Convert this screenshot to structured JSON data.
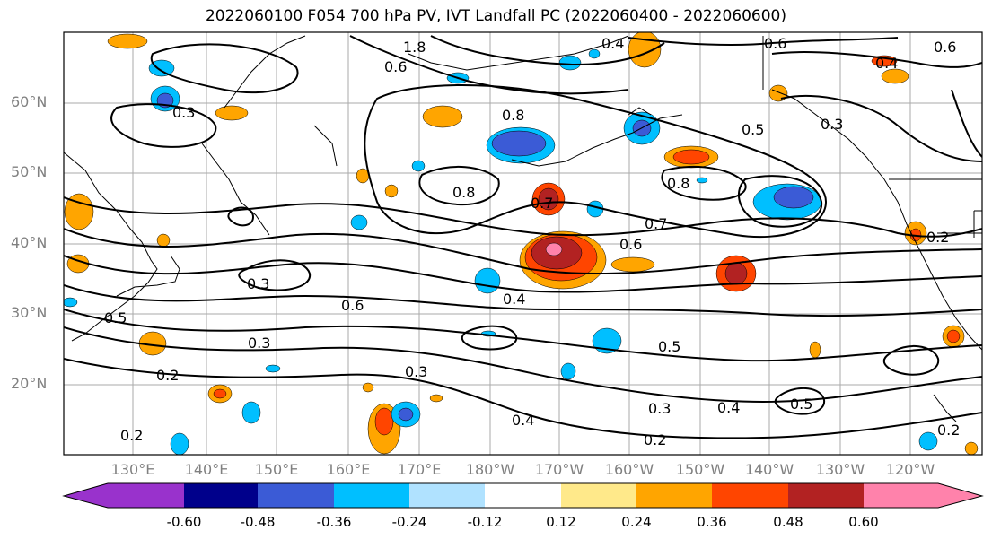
{
  "title": "2022060100 F054 700 hPa PV, IVT Landfall PC (2022060400 - 2022060600)",
  "lat_labels": [
    "60°N",
    "50°N",
    "40°N",
    "30°N",
    "20°N"
  ],
  "lon_labels": [
    "130°E",
    "140°E",
    "150°E",
    "160°E",
    "170°E",
    "180°W",
    "170°W",
    "160°W",
    "150°W",
    "140°W",
    "130°W",
    "120°W"
  ],
  "contour_labels": [
    "0.8",
    "0.8",
    "0.7",
    "0.7",
    "0.6",
    "0.6",
    "0.5",
    "0.5",
    "0.4",
    "0.4",
    "0.3",
    "0.3",
    "0.3",
    "0.3",
    "0.3",
    "0.2",
    "0.2",
    "0.2",
    "0.2",
    "0.2",
    "1.8",
    "0.6",
    "0.4",
    "0.6",
    "0.4",
    "0.5",
    "0.8",
    "0.3",
    "0.4",
    "0.5",
    "0.6"
  ],
  "colorbar": {
    "colors": [
      "#9932cc",
      "#00008b",
      "#3b5bd6",
      "#00bfff",
      "#b0e2ff",
      "#ffffff",
      "#ffe98a",
      "#ffa500",
      "#ff4500",
      "#b22222",
      "#ff82ab"
    ],
    "ticks": [
      "-0.60",
      "-0.48",
      "-0.36",
      "-0.24",
      "-0.12",
      "0.12",
      "0.24",
      "0.36",
      "0.48",
      "0.60"
    ]
  }
}
